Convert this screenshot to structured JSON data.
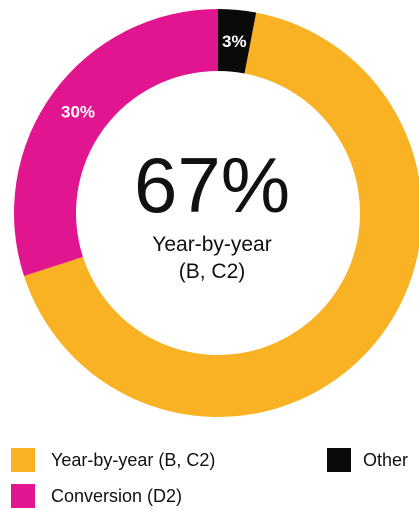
{
  "chart_data": {
    "type": "pie",
    "categories": [
      "Other",
      "Year-by-year (B, C2)",
      "Conversion (D2)"
    ],
    "values": [
      3,
      67,
      30
    ],
    "data_labels": [
      "3%",
      "",
      "30%"
    ],
    "colors": [
      "#0a0a0a",
      "#f8b223",
      "#e1158f"
    ],
    "data_label_colors": [
      "#ffffff",
      "#ffffff",
      "#ffffff"
    ],
    "hole": "donut",
    "start": "top",
    "direction": "clockwise",
    "center": {
      "value": "67%",
      "caption_lines": [
        "Year-by-year",
        "(B, C2)"
      ]
    },
    "legend": {
      "placement": "bottom",
      "items": [
        {
          "label": "Year-by-year (B, C2)",
          "color": "#f8b223"
        },
        {
          "label": "Other",
          "color": "#0a0a0a"
        },
        {
          "label": "Conversion (D2)",
          "color": "#e1158f"
        }
      ]
    }
  }
}
